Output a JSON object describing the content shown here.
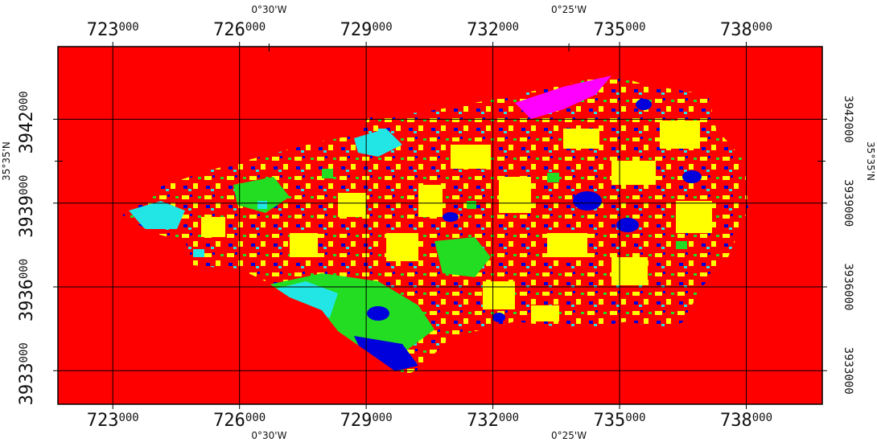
{
  "map": {
    "easting_ticks": [
      {
        "main": "723",
        "sup": "000",
        "value": 723000
      },
      {
        "main": "726",
        "sup": "000",
        "value": 726000
      },
      {
        "main": "729",
        "sup": "000",
        "value": 729000
      },
      {
        "main": "732",
        "sup": "000",
        "value": 732000
      },
      {
        "main": "735",
        "sup": "000",
        "value": 735000
      },
      {
        "main": "738",
        "sup": "000",
        "value": 738000
      }
    ],
    "northing_ticks_left": [
      {
        "main": "3942",
        "sup": "000",
        "value": 3942000
      },
      {
        "main": "3939",
        "sup": "000",
        "value": 3939000
      },
      {
        "main": "3936",
        "sup": "000",
        "value": 3936000
      },
      {
        "main": "3933",
        "sup": "000",
        "value": 3933000
      }
    ],
    "northing_ticks_right": [
      {
        "label": "3942000",
        "value": 3942000
      },
      {
        "label": "3939000",
        "value": 3939000
      },
      {
        "label": "3936000",
        "value": 3936000
      },
      {
        "label": "3933000",
        "value": 3933000
      }
    ],
    "longitude_labels": [
      {
        "label": "0°30'W",
        "easting": 726700
      },
      {
        "label": "0°25'W",
        "easting": 733800
      }
    ],
    "latitude_labels": [
      {
        "label": "35°35'N",
        "northing": 3940500
      }
    ],
    "extent": {
      "e_min": 721700,
      "e_max": 739800,
      "n_min": 3931800,
      "n_max": 3944600
    },
    "colors": {
      "background_class": "#ff0000",
      "yellow_class": "#ffff00",
      "blue_class": "#0000dd",
      "green_class": "#22dd22",
      "cyan_class": "#22e6e6",
      "magenta_class": "#ff00ff",
      "frame": "#000000"
    }
  }
}
